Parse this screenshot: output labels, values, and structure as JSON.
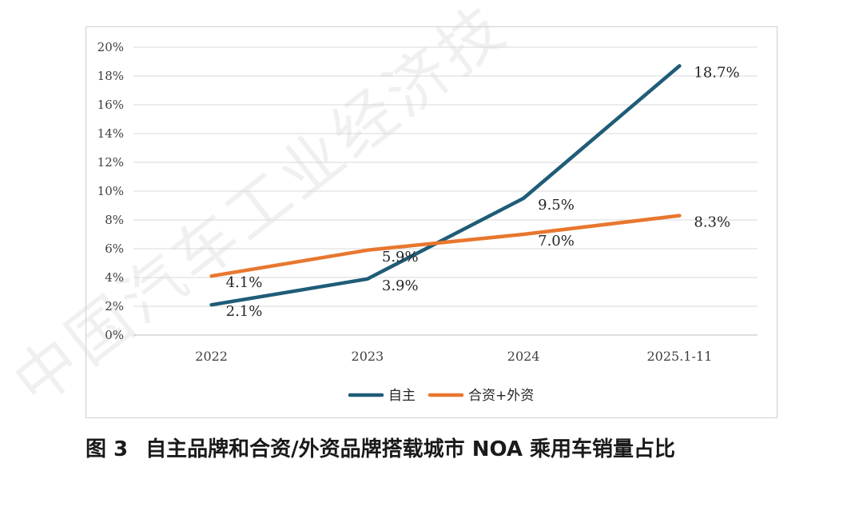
{
  "watermark": "中国汽车工业经济技",
  "caption": {
    "number": "图 3",
    "text": "自主品牌和合资/外资品牌搭载城市 NOA 乘用车销量占比"
  },
  "chart_data": {
    "type": "line",
    "title": "",
    "xlabel": "",
    "ylabel": "",
    "categories": [
      "2022",
      "2023",
      "2024",
      "2025.1-11"
    ],
    "yticks": [
      "0%",
      "2%",
      "4%",
      "6%",
      "8%",
      "10%",
      "12%",
      "14%",
      "16%",
      "18%",
      "20%"
    ],
    "ylim": [
      0,
      20
    ],
    "grid": true,
    "legend_position": "bottom",
    "series": [
      {
        "name": "自主",
        "color": "#1f5c78",
        "values": [
          2.1,
          3.9,
          9.5,
          18.7
        ],
        "labels": [
          "2.1%",
          "3.9%",
          "9.5%",
          "18.7%"
        ]
      },
      {
        "name": "合资+外资",
        "color": "#e8772e",
        "values": [
          4.1,
          5.9,
          7.0,
          8.3
        ],
        "labels": [
          "4.1%",
          "5.9%",
          "7.0%",
          "8.3%"
        ]
      }
    ]
  }
}
